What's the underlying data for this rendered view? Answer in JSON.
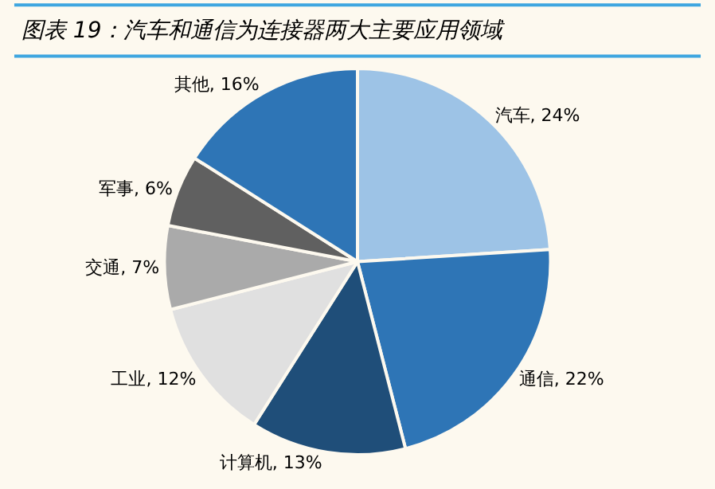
{
  "chart_data": {
    "type": "pie",
    "title": "图表 19：汽车和通信为连接器两大主要应用领域",
    "categories": [
      "汽车",
      "通信",
      "计算机",
      "工业",
      "交通",
      "军事",
      "其他"
    ],
    "values": [
      24,
      22,
      13,
      12,
      7,
      6,
      16
    ],
    "value_labels": [
      "24%",
      "22%",
      "13%",
      "12%",
      "7%",
      "6%",
      "16%"
    ],
    "colors": [
      "#9dc3e6",
      "#2e75b6",
      "#1f4e79",
      "#e0e0e0",
      "#aaaaaa",
      "#606060",
      "#2e75b6"
    ]
  }
}
